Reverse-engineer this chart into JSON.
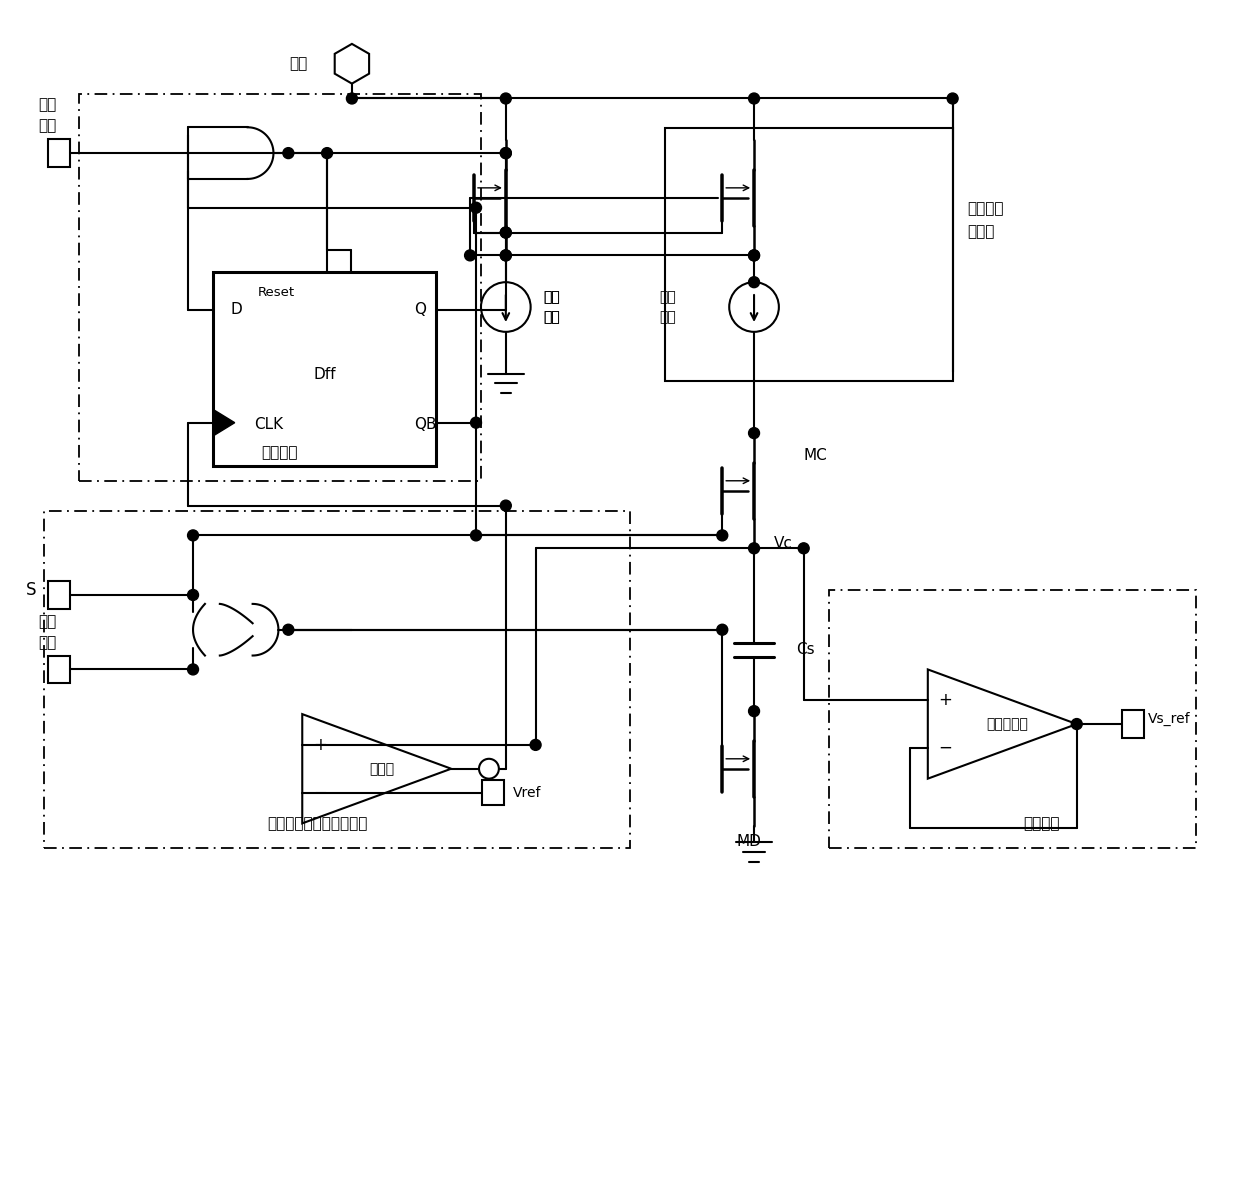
{
  "bg_color": "#ffffff",
  "figsize": [
    12.4,
    11.8
  ],
  "dpi": 100,
  "labels": {
    "power": "电源",
    "reset_signal": "复位\n信号",
    "shutdown_circuit": "关断电路",
    "dff_name": "Dff",
    "D": "D",
    "CLK": "CLK",
    "Reset": "Reset",
    "Q": "Q",
    "QB": "QB",
    "bias_current": "偏置\n电流",
    "charge_current": "充电\n电流",
    "charge_current_gen": "充电电流\n发生器",
    "S": "S",
    "enable_signal": "使能\n信号",
    "comparator": "比较器",
    "soft_start_end": "软启动过程结束判断电路",
    "Vref": "Vref",
    "MC": "MC",
    "Vc": "Vc",
    "Cs": "Cs",
    "MD": "MD",
    "opamp": "运算放大器",
    "current_limit": "限流电路",
    "Vs_ref": "Vs_ref"
  }
}
